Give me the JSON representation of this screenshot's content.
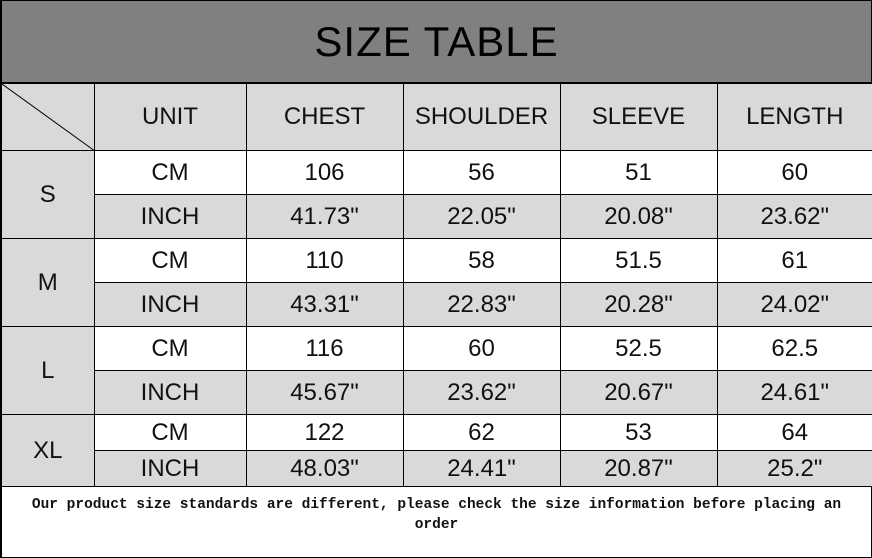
{
  "title": "SIZE TABLE",
  "headers": [
    "UNIT",
    "CHEST",
    "SHOULDER",
    "SLEEVE",
    "LENGTH"
  ],
  "sizes": [
    {
      "size": "S",
      "rows": [
        {
          "unit": "CM",
          "values": [
            "106",
            "56",
            "51",
            "60"
          ]
        },
        {
          "unit": "INCH",
          "values": [
            "41.73\"",
            "22.05\"",
            "20.08\"",
            "23.62\""
          ]
        }
      ]
    },
    {
      "size": "M",
      "rows": [
        {
          "unit": "CM",
          "values": [
            "110",
            "58",
            "51.5",
            "61"
          ]
        },
        {
          "unit": "INCH",
          "values": [
            "43.31\"",
            "22.83\"",
            "20.28\"",
            "24.02\""
          ]
        }
      ]
    },
    {
      "size": "L",
      "rows": [
        {
          "unit": "CM",
          "values": [
            "116",
            "60",
            "52.5",
            "62.5"
          ]
        },
        {
          "unit": "INCH",
          "values": [
            "45.67\"",
            "23.62\"",
            "20.67\"",
            "24.61\""
          ]
        }
      ]
    },
    {
      "size": "XL",
      "rows": [
        {
          "unit": "CM",
          "values": [
            "122",
            "62",
            "53",
            "64"
          ]
        },
        {
          "unit": "INCH",
          "values": [
            "48.03\"",
            "24.41\"",
            "20.87\"",
            "25.2\""
          ]
        }
      ]
    }
  ],
  "footer": "Our product size standards are different, please check the size information before placing an order",
  "colors": {
    "title_bg": "#808080",
    "header_bg": "#d9d9d9",
    "alt_row_bg": "#d9d9d9"
  }
}
